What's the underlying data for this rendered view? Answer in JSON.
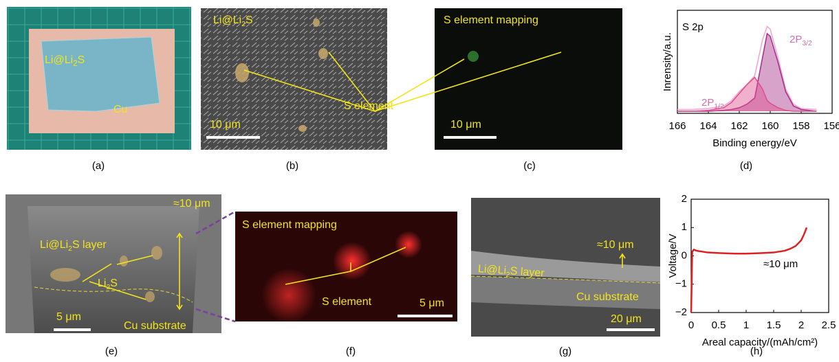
{
  "panels": {
    "a": {
      "label": "(a)",
      "sample": {
        "main": "Li@Li",
        "sub": "2",
        "tail": "S"
      },
      "substrate": "Cu"
    },
    "b": {
      "label": "(b)",
      "sample": {
        "main": "Li@Li",
        "sub": "2",
        "tail": "S"
      },
      "element": "S element",
      "scale": "10 μm"
    },
    "c": {
      "label": "(c)",
      "title": "S element mapping",
      "scale": "10 μm"
    },
    "d": {
      "label": "(d)"
    },
    "e": {
      "label": "(e)",
      "thickness": "≈10 μm",
      "layer": {
        "main": "Li@Li",
        "sub": "2",
        "tail": "S layer"
      },
      "particle": {
        "main": "Li",
        "sub": "2",
        "tail": "S"
      },
      "scale": "5 μm",
      "substrate": "Cu substrate"
    },
    "f": {
      "label": "(f)",
      "title": "S element mapping",
      "element": "S element",
      "scale": "5 μm"
    },
    "g": {
      "label": "(g)",
      "thickness": "≈10 μm",
      "layer": {
        "main": "Li@Li",
        "sub": "2",
        "tail": "S layer"
      },
      "substrate": "Cu substrate",
      "scale": "20 μm"
    },
    "h": {
      "label": "(h)"
    }
  },
  "chart_data": [
    {
      "type": "area",
      "x_label": "Binding energy/eV",
      "y_label": "Inrensity/a.u.",
      "annotation": "S 2p",
      "peak_labels": [
        {
          "main": "2P",
          "sub": "3/2"
        },
        {
          "main": "2P",
          "sub": "1/2"
        }
      ],
      "x": [
        166,
        165,
        164,
        163,
        162.5,
        162,
        161.5,
        161,
        160.5,
        160.2,
        160,
        159.5,
        159,
        158.5,
        158,
        157
      ],
      "series": [
        {
          "color": "#f2a6d6",
          "fill": false,
          "values": [
            2,
            2,
            3,
            6,
            12,
            22,
            30,
            40,
            80,
            95,
            92,
            60,
            25,
            8,
            3,
            2
          ]
        },
        {
          "color": "#a8328c",
          "fill": true,
          "values": [
            0,
            0,
            0,
            1,
            2,
            4,
            8,
            15,
            60,
            87,
            84,
            55,
            22,
            6,
            2,
            0
          ]
        },
        {
          "color": "#e0508c",
          "fill": true,
          "values": [
            0,
            0,
            1,
            4,
            10,
            20,
            30,
            38,
            25,
            12,
            9,
            4,
            1,
            0,
            0,
            0
          ]
        }
      ],
      "xlim": [
        166,
        156
      ],
      "xticks": [
        166,
        164,
        162,
        160,
        158,
        156
      ],
      "ylim": [
        0,
        100
      ]
    },
    {
      "type": "line",
      "x_label": "Areal capacity/(mAh/cm²)",
      "y_label": "Voltage/V",
      "annotation": "≈10 μm",
      "x": [
        0,
        0.02,
        0.05,
        0.1,
        0.3,
        0.5,
        0.8,
        1.0,
        1.3,
        1.5,
        1.7,
        1.8,
        1.9,
        2.0,
        2.05,
        2.1
      ],
      "series": [
        {
          "color": "#e02020",
          "values": [
            -2,
            0.15,
            0.22,
            0.18,
            0.12,
            0.1,
            0.08,
            0.08,
            0.1,
            0.12,
            0.18,
            0.25,
            0.35,
            0.55,
            0.75,
            1.0
          ]
        }
      ],
      "xlim": [
        0,
        2.5
      ],
      "xticks": [
        0,
        0.5,
        1,
        {
          "value": 1.5,
          "label": "1.5"
        },
        2,
        2.5
      ],
      "ylim": [
        -2,
        2
      ],
      "yticks": [
        {
          "value": -2,
          "label": "−2"
        },
        {
          "value": -1,
          "label": "−1"
        },
        0,
        1,
        2
      ]
    }
  ]
}
